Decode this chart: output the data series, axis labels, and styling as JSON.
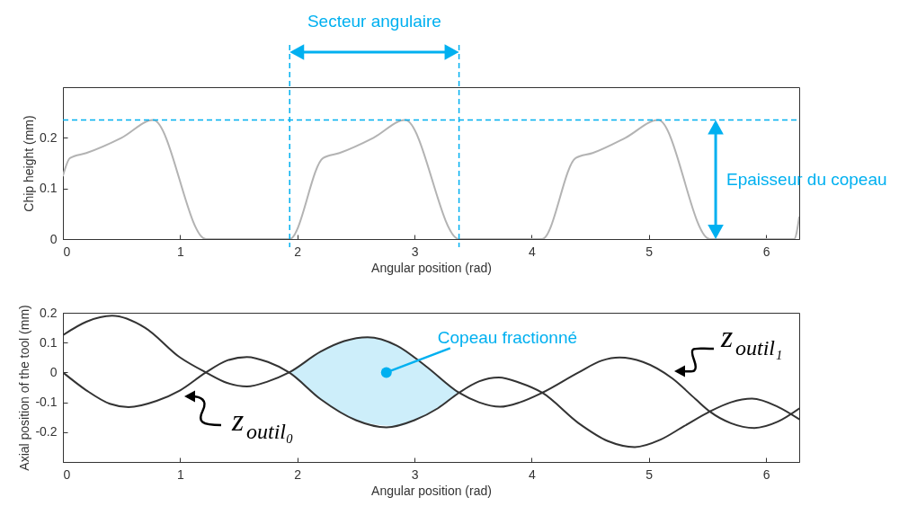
{
  "chart_data": [
    {
      "type": "line",
      "xlabel": "Angular position (rad)",
      "ylabel": "Chip height  (mm)",
      "xlim": [
        0,
        6.283
      ],
      "ylim": [
        0,
        0.3
      ],
      "xticks": [
        0,
        1,
        2,
        3,
        4,
        5,
        6
      ],
      "yticks": [
        0,
        0.1,
        0.2
      ],
      "series": [
        {
          "color": "#b3b3b3",
          "x": [
            0,
            0.06,
            0.2,
            0.5,
            0.77,
            1.22,
            1.935,
            2.22,
            2.36,
            2.65,
            2.92,
            3.38,
            4.09,
            4.375,
            4.52,
            4.8,
            5.08,
            5.52,
            6.24,
            6.283
          ],
          "values": [
            0.125,
            0.16,
            0.17,
            0.2,
            0.235,
            0,
            0,
            0.16,
            0.17,
            0.2,
            0.235,
            0,
            0,
            0.16,
            0.17,
            0.2,
            0.235,
            0,
            0,
            0.043
          ]
        }
      ],
      "ref_lines": [
        {
          "axis": "x",
          "value": 1.935,
          "color": "#00b0f0",
          "line_style": "dashed"
        },
        {
          "axis": "x",
          "value": 3.38,
          "color": "#00b0f0",
          "line_style": "dashed"
        },
        {
          "axis": "y",
          "value": 0.235,
          "color": "#00b0f0",
          "line_style": "dashed"
        }
      ],
      "annotations": [
        "Secteur angulaire",
        {
          "text": "Epaisseur du copeau",
          "x": 5.57,
          "y": 0.235
        }
      ]
    },
    {
      "type": "line",
      "xlabel": "Angular position (rad)",
      "ylabel": "Axial position of the tool (mm)",
      "xlim": [
        0,
        6.283
      ],
      "ylim": [
        -0.3,
        0.2
      ],
      "xticks": [
        0,
        1,
        2,
        3,
        4,
        5,
        6
      ],
      "yticks": [
        -0.2,
        -0.1,
        0,
        0.1,
        0.2
      ],
      "series": [
        {
          "name": "z$_{outil₀}$",
          "color": "#333333",
          "x": [
            0,
            0.2,
            0.4,
            0.56,
            0.8,
            1.0,
            1.22,
            1.4,
            1.57,
            1.75,
            1.93,
            2.2,
            2.5,
            2.76,
            3.0,
            3.2,
            3.38,
            3.55,
            3.72,
            3.9,
            4.09,
            4.4,
            4.65,
            4.88,
            5.1,
            5.3,
            5.52,
            5.7,
            5.88,
            6.1,
            6.283
          ],
          "values": [
            0,
            -0.06,
            -0.105,
            -0.116,
            -0.095,
            -0.06,
            0,
            0.04,
            0.052,
            0.035,
            0,
            -0.09,
            -0.16,
            -0.184,
            -0.16,
            -0.12,
            -0.068,
            -0.03,
            -0.017,
            -0.035,
            -0.068,
            -0.17,
            -0.23,
            -0.25,
            -0.225,
            -0.18,
            -0.131,
            -0.1,
            -0.088,
            -0.115,
            -0.157
          ]
        },
        {
          "name": "z$_{outil₁}$",
          "color": "#333333",
          "x": [
            0,
            0.2,
            0.42,
            0.7,
            1.0,
            1.22,
            1.4,
            1.57,
            1.75,
            1.93,
            2.2,
            2.4,
            2.6,
            2.85,
            3.1,
            3.38,
            3.55,
            3.73,
            3.9,
            4.09,
            4.4,
            4.6,
            4.75,
            4.95,
            5.2,
            5.4,
            5.52,
            5.7,
            5.9,
            6.1,
            6.283
          ],
          "values": [
            0.125,
            0.17,
            0.19,
            0.15,
            0.05,
            0,
            -0.035,
            -0.047,
            -0.03,
            0,
            0.07,
            0.105,
            0.118,
            0.09,
            0.02,
            -0.068,
            -0.1,
            -0.115,
            -0.1,
            -0.068,
            0,
            0.04,
            0.05,
            0.035,
            -0.02,
            -0.09,
            -0.131,
            -0.17,
            -0.186,
            -0.165,
            -0.121
          ],
          "lower": [
            null,
            null,
            null,
            null,
            null,
            null,
            null,
            null,
            null,
            0,
            -0.09,
            -0.14,
            -0.17,
            -0.18,
            -0.14,
            -0.068,
            null,
            null,
            null,
            null,
            null,
            null,
            null,
            null,
            null,
            null,
            null,
            null,
            null,
            null,
            null
          ],
          "upper": [
            null,
            null,
            null,
            null,
            null,
            null,
            null,
            null,
            null,
            0,
            0.07,
            0.105,
            0.118,
            0.09,
            0.02,
            -0.068,
            null,
            null,
            null,
            null,
            null,
            null,
            null,
            null,
            null,
            null,
            null,
            null,
            null,
            null,
            null
          ]
        }
      ],
      "annotations": [
        {
          "text": "Copeau fractionné",
          "x": 2.76,
          "y": 0
        }
      ]
    }
  ]
}
